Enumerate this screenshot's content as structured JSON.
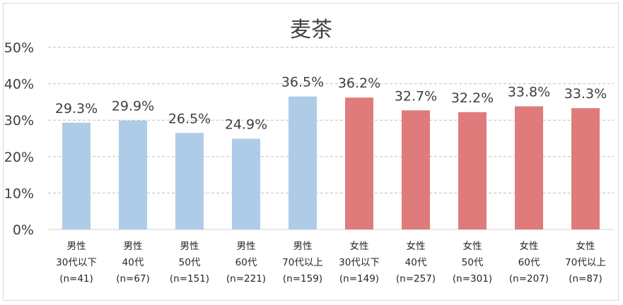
{
  "chart_data": {
    "type": "bar",
    "title": "麦茶",
    "ylim": [
      0,
      50
    ],
    "yticks": [
      "0%",
      "10%",
      "20%",
      "30%",
      "40%",
      "50%"
    ],
    "grid": true,
    "categories": [
      [
        "男性",
        "30代以下",
        "(n=41)"
      ],
      [
        "男性",
        "40代",
        "(n=67)"
      ],
      [
        "男性",
        "50代",
        "(n=151)"
      ],
      [
        "男性",
        "60代",
        "(n=221)"
      ],
      [
        "男性",
        "70代以上",
        "(n=159)"
      ],
      [
        "女性",
        "30代以下",
        "(n=149)"
      ],
      [
        "女性",
        "40代",
        "(n=257)"
      ],
      [
        "女性",
        "50代",
        "(n=301)"
      ],
      [
        "女性",
        "60代",
        "(n=207)"
      ],
      [
        "女性",
        "70代以上",
        "(n=87)"
      ]
    ],
    "values": [
      29.3,
      29.9,
      26.5,
      24.9,
      36.5,
      36.2,
      32.7,
      32.2,
      33.8,
      33.3
    ],
    "data_labels": [
      "29.3%",
      "29.9%",
      "26.5%",
      "24.9%",
      "36.5%",
      "36.2%",
      "32.7%",
      "32.2%",
      "33.8%",
      "33.3%"
    ],
    "colors": {
      "male": "#aecce8",
      "female": "#e07b7b",
      "grid": "#bfbfbf",
      "axis": "#d9d9d9"
    }
  }
}
